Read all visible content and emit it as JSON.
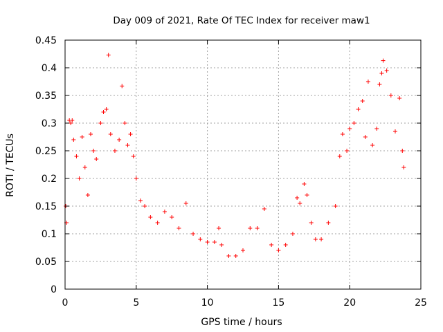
{
  "chart_data": {
    "type": "scatter",
    "title": "Day 009 of 2021, Rate Of TEC Index for receiver maw1",
    "xlabel": "GPS time / hours",
    "ylabel": "ROTI / TECUs",
    "xlim": [
      0,
      25
    ],
    "ylim": [
      0,
      0.45
    ],
    "x_ticks": [
      0,
      5,
      10,
      15,
      20,
      25
    ],
    "y_ticks": [
      0,
      0.05,
      0.1,
      0.15,
      0.2,
      0.25,
      0.3,
      0.35,
      0.4,
      0.45
    ],
    "x_tick_labels": [
      "0",
      "5",
      "10",
      "15",
      "20",
      "25"
    ],
    "y_tick_labels": [
      "0",
      "0.05",
      "0.1",
      "0.15",
      "0.2",
      "0.25",
      "0.3",
      "0.35",
      "0.4",
      "0.45"
    ],
    "grid": true,
    "marker": "+",
    "marker_color": "#ff0000",
    "series": [
      {
        "name": "ROTI",
        "points": [
          [
            0.05,
            0.15
          ],
          [
            0.1,
            0.12
          ],
          [
            0.3,
            0.305
          ],
          [
            0.4,
            0.3
          ],
          [
            0.5,
            0.305
          ],
          [
            0.6,
            0.27
          ],
          [
            0.8,
            0.24
          ],
          [
            1.0,
            0.2
          ],
          [
            1.2,
            0.275
          ],
          [
            1.4,
            0.22
          ],
          [
            1.6,
            0.17
          ],
          [
            1.8,
            0.28
          ],
          [
            2.0,
            0.25
          ],
          [
            2.2,
            0.235
          ],
          [
            2.5,
            0.3
          ],
          [
            2.7,
            0.32
          ],
          [
            2.9,
            0.325
          ],
          [
            3.05,
            0.423
          ],
          [
            3.2,
            0.28
          ],
          [
            3.5,
            0.25
          ],
          [
            3.8,
            0.27
          ],
          [
            4.0,
            0.367
          ],
          [
            4.2,
            0.3
          ],
          [
            4.4,
            0.26
          ],
          [
            4.6,
            0.28
          ],
          [
            4.8,
            0.24
          ],
          [
            5.0,
            0.2
          ],
          [
            5.3,
            0.16
          ],
          [
            5.6,
            0.15
          ],
          [
            6.0,
            0.13
          ],
          [
            6.5,
            0.12
          ],
          [
            7.0,
            0.14
          ],
          [
            7.5,
            0.13
          ],
          [
            8.0,
            0.11
          ],
          [
            8.5,
            0.155
          ],
          [
            9.0,
            0.1
          ],
          [
            9.5,
            0.09
          ],
          [
            10.0,
            0.085
          ],
          [
            10.5,
            0.085
          ],
          [
            10.8,
            0.11
          ],
          [
            11.0,
            0.08
          ],
          [
            11.5,
            0.06
          ],
          [
            12.0,
            0.06
          ],
          [
            12.5,
            0.07
          ],
          [
            13.0,
            0.11
          ],
          [
            13.5,
            0.11
          ],
          [
            14.0,
            0.145
          ],
          [
            14.5,
            0.08
          ],
          [
            15.0,
            0.07
          ],
          [
            15.5,
            0.08
          ],
          [
            16.0,
            0.1
          ],
          [
            16.3,
            0.165
          ],
          [
            16.5,
            0.155
          ],
          [
            16.8,
            0.19
          ],
          [
            17.0,
            0.17
          ],
          [
            17.3,
            0.12
          ],
          [
            17.6,
            0.09
          ],
          [
            18.0,
            0.09
          ],
          [
            18.5,
            0.12
          ],
          [
            19.0,
            0.15
          ],
          [
            19.3,
            0.24
          ],
          [
            19.5,
            0.28
          ],
          [
            19.8,
            0.25
          ],
          [
            20.0,
            0.29
          ],
          [
            20.3,
            0.3
          ],
          [
            20.6,
            0.325
          ],
          [
            20.9,
            0.34
          ],
          [
            21.1,
            0.275
          ],
          [
            21.3,
            0.375
          ],
          [
            21.6,
            0.26
          ],
          [
            21.9,
            0.29
          ],
          [
            22.1,
            0.37
          ],
          [
            22.25,
            0.39
          ],
          [
            22.35,
            0.413
          ],
          [
            22.6,
            0.395
          ],
          [
            22.9,
            0.35
          ],
          [
            23.2,
            0.285
          ],
          [
            23.5,
            0.345
          ],
          [
            23.7,
            0.25
          ],
          [
            23.8,
            0.22
          ]
        ]
      }
    ]
  }
}
